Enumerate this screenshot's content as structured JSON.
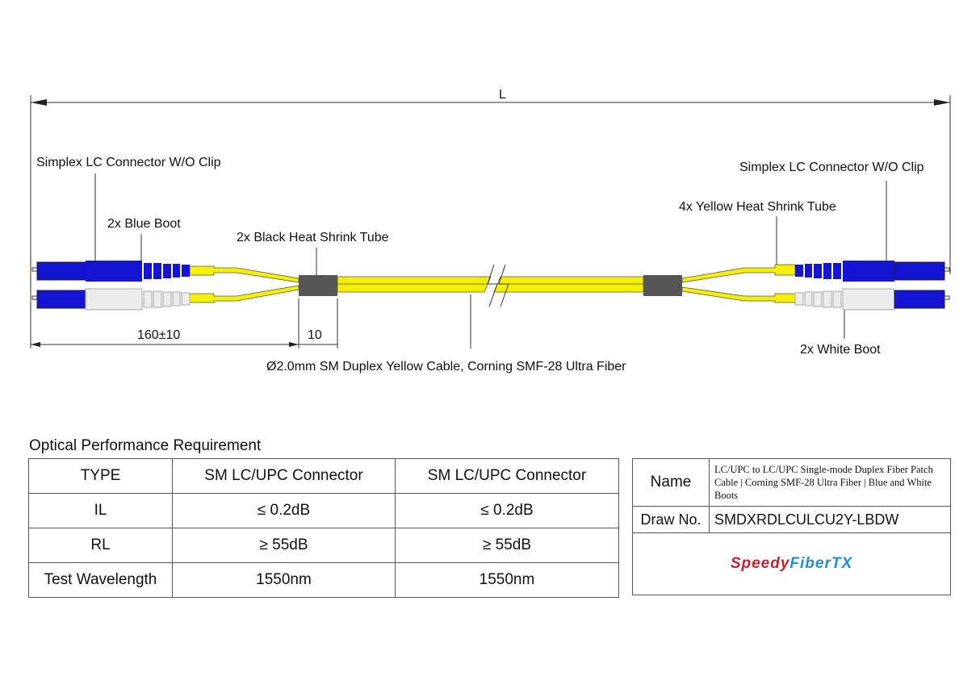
{
  "drawing": {
    "length_label": "L",
    "left_connector_label": "Simplex LC Connector W/O Clip",
    "right_connector_label": "Simplex LC Connector W/O Clip",
    "blue_boot_label": "2x Blue Boot",
    "black_tube_label": "2x Black Heat Shrink Tube",
    "yellow_tube_label": "4x Yellow Heat Shrink Tube",
    "white_boot_label": "2x White Boot",
    "breakout_dim": "160±10",
    "tube_dim": "10",
    "cable_label": "Ø2.0mm SM Duplex Yellow Cable, Corning SMF-28 Ultra Fiber",
    "colors": {
      "cable": "#f5f000",
      "blue_boot": "#1414d2",
      "white_boot": "#ececec",
      "black_tube": "#555555"
    }
  },
  "performance": {
    "title": "Optical Performance Requirement",
    "headers": [
      "TYPE",
      "SM LC/UPC Connector",
      "SM LC/UPC Connector"
    ],
    "rows": [
      [
        "IL",
        "≤ 0.2dB",
        "≤ 0.2dB"
      ],
      [
        "RL",
        "≥ 55dB",
        "≥ 55dB"
      ],
      [
        "Test Wavelength",
        "1550nm",
        "1550nm"
      ]
    ]
  },
  "info": {
    "name_label": "Name",
    "name_value": "LC/UPC to LC/UPC Single-mode Duplex Fiber Patch Cable | Corning SMF-28 Ultra Fiber | Blue and White Boots",
    "draw_label": "Draw No.",
    "draw_value": "SMDXRDLCULCU2Y-LBDW",
    "logo_part1": "Speedy",
    "logo_part2": "FiberTX",
    "logo_colors": {
      "speedy": "#c8202f",
      "fibertx": "#1d8fd0"
    }
  }
}
